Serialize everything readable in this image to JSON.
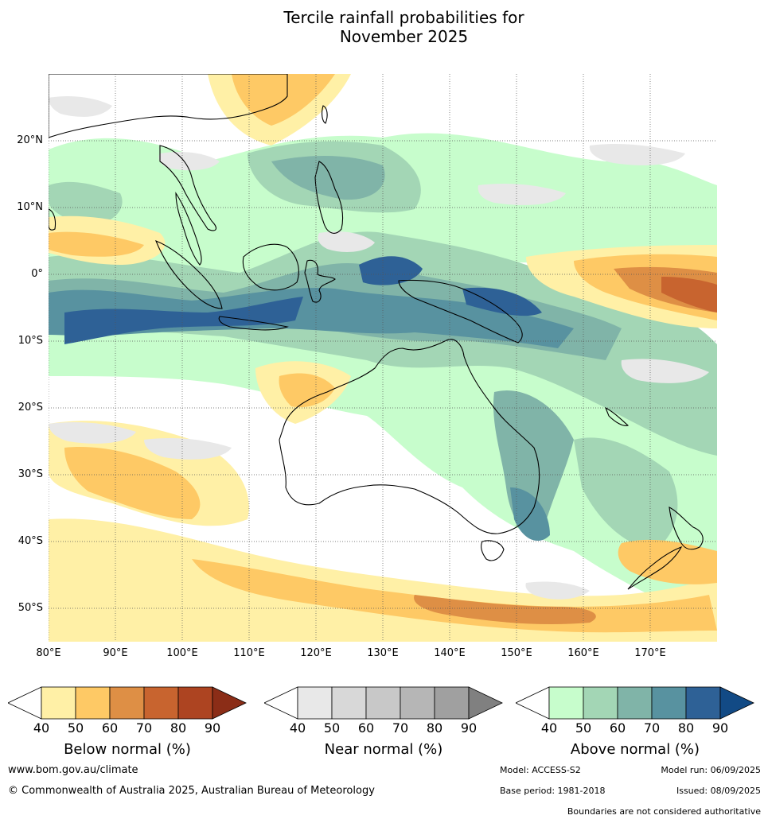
{
  "title_line1": "Tercile rainfall probabilities for",
  "title_line2": "November 2025",
  "map": {
    "lon_range": [
      80,
      180
    ],
    "lat_range": [
      -55,
      30
    ],
    "lat_labels": [
      "20°N",
      "10°N",
      "0°",
      "10°S",
      "20°S",
      "30°S",
      "40°S",
      "50°S"
    ],
    "lat_values": [
      20,
      10,
      0,
      -10,
      -20,
      -30,
      -40,
      -50
    ],
    "lon_labels": [
      "80°E",
      "90°E",
      "100°E",
      "110°E",
      "120°E",
      "130°E",
      "140°E",
      "150°E",
      "160°E",
      "170°E"
    ],
    "lon_values": [
      80,
      90,
      100,
      110,
      120,
      130,
      140,
      150,
      160,
      170
    ]
  },
  "colorbars": [
    {
      "label": "Below normal (%)",
      "ticks": [
        "40",
        "50",
        "60",
        "70",
        "80",
        "90"
      ],
      "colors": [
        "#fff0a6",
        "#fec965",
        "#de8f45",
        "#c8642f",
        "#ad4421",
        "#8b2d17"
      ]
    },
    {
      "label": "Near normal (%)",
      "ticks": [
        "40",
        "50",
        "60",
        "70",
        "80",
        "90"
      ],
      "colors": [
        "#e8e8e8",
        "#d8d8d8",
        "#c8c8c8",
        "#b6b6b6",
        "#a0a0a0",
        "#808080"
      ]
    },
    {
      "label": "Above normal (%)",
      "ticks": [
        "40",
        "50",
        "60",
        "70",
        "80",
        "90"
      ],
      "colors": [
        "#c7fdcc",
        "#a3d6b5",
        "#80b4a8",
        "#5892a0",
        "#2e6196",
        "#124a85"
      ]
    }
  ],
  "footer": {
    "website": "www.bom.gov.au/climate",
    "copyright": "© Commonwealth of Australia 2025, Australian Bureau of Meteorology",
    "model": "Model: ACCESS-S2",
    "model_run": "Model run: 06/09/2025",
    "base_period": "Base period: 1981-2018",
    "issued": "Issued: 08/09/2025",
    "boundaries": "Boundaries are not considered authoritative"
  }
}
